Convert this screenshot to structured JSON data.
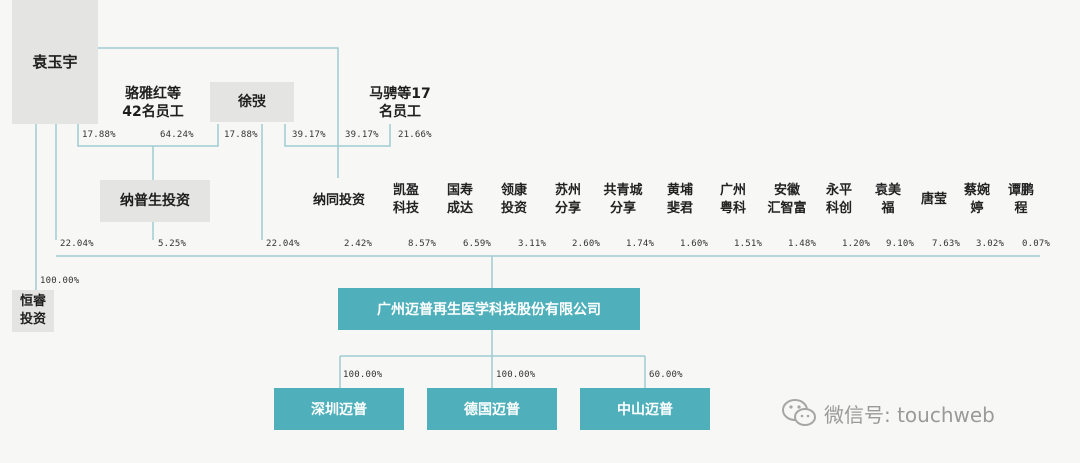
{
  "shareholders": {
    "yuan_yuyu": "袁玉宇",
    "luo_yahong": "骆雅红等\n42名员工",
    "xu_bo": "徐弢",
    "ma_pin": "马骋等17\n名员工",
    "napusheng": "纳普生投资",
    "natong": "纳同投资",
    "hengrui": "恒睿\n投资",
    "small": [
      "凯盈\n科技",
      "国寿\n成达",
      "领康\n投资",
      "苏州\n分享",
      "共青城\n分享",
      "黄埔\n斐君",
      "广州\n粤科",
      "安徽\n汇智富",
      "永平\n科创",
      "袁美\n福",
      "唐莹",
      "蔡婉\n婷",
      "谭鹏\n程"
    ]
  },
  "upper_pcts": {
    "luo_to_napusheng": "17.88%",
    "napusheng_from_luo": "64.24%",
    "xu_to_napusheng": "17.88%",
    "ma_to_natong_a": "39.17%",
    "ma_to_natong_b": "39.17%",
    "natong_other": "21.66%"
  },
  "holdings": [
    "22.04%",
    "5.25%",
    "22.04%",
    "2.42%",
    "8.57%",
    "6.59%",
    "3.11%",
    "2.60%",
    "1.74%",
    "1.60%",
    "1.51%",
    "1.48%",
    "1.20%",
    "9.10%",
    "7.63%",
    "3.02%",
    "0.07%"
  ],
  "hengrui_pct": "100.00%",
  "company": "广州迈普再生医学科技股份有限公司",
  "subsidiaries": [
    {
      "name": "深圳迈普",
      "pct": "100.00%"
    },
    {
      "name": "德国迈普",
      "pct": "100.00%"
    },
    {
      "name": "中山迈普",
      "pct": "60.00%"
    }
  ],
  "watermark": "微信号: touchweb"
}
